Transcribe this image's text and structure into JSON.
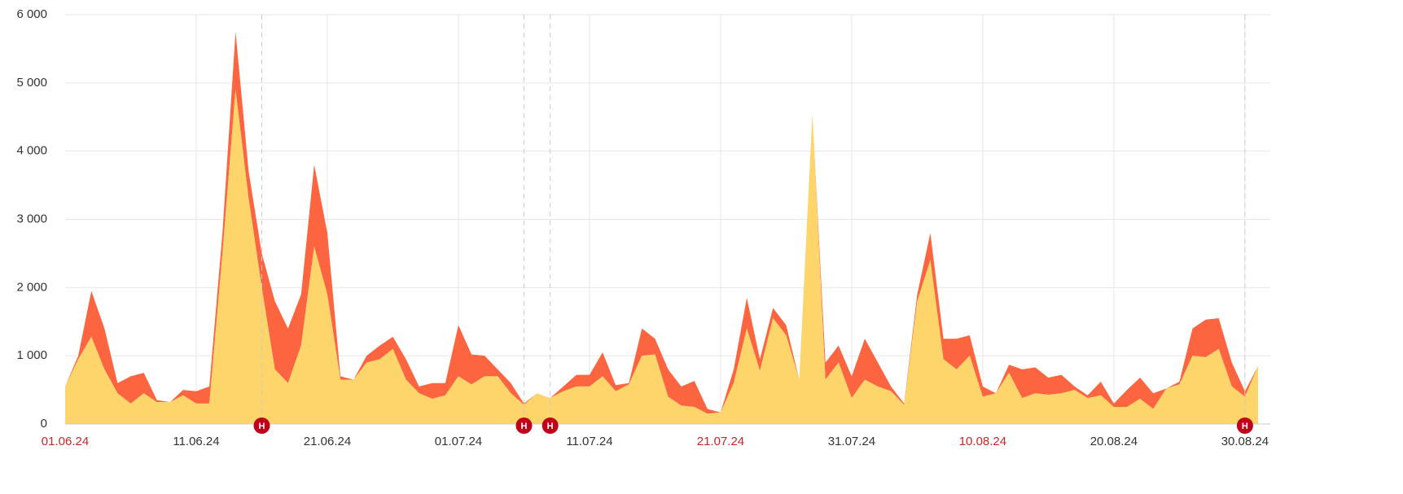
{
  "chart_data": {
    "type": "stacked_area",
    "categories": [
      "01.06.24",
      null,
      null,
      null,
      null,
      null,
      null,
      null,
      null,
      null,
      "11.06.24",
      null,
      null,
      null,
      null,
      null,
      null,
      null,
      null,
      null,
      "21.06.24",
      null,
      null,
      null,
      null,
      null,
      null,
      null,
      null,
      null,
      "01.07.24",
      null,
      null,
      null,
      null,
      null,
      null,
      null,
      null,
      null,
      "11.07.24",
      null,
      null,
      null,
      null,
      null,
      null,
      null,
      null,
      null,
      "21.07.24",
      null,
      null,
      null,
      null,
      null,
      null,
      null,
      null,
      null,
      "31.07.24",
      null,
      null,
      null,
      null,
      null,
      null,
      null,
      null,
      null,
      "10.08.24",
      null,
      null,
      null,
      null,
      null,
      null,
      null,
      null,
      null,
      "20.08.24",
      null,
      null,
      null,
      null,
      null,
      null,
      null,
      null,
      null,
      "30.08.24",
      null
    ],
    "series": [
      {
        "color": "#fdd56a",
        "values": [
          550,
          950,
          1280,
          800,
          450,
          300,
          450,
          320,
          320,
          420,
          300,
          300,
          2500,
          4900,
          3300,
          2000,
          800,
          600,
          1150,
          2600,
          1900,
          650,
          650,
          900,
          950,
          1100,
          650,
          450,
          370,
          420,
          700,
          580,
          700,
          700,
          450,
          280,
          450,
          380,
          480,
          550,
          550,
          700,
          480,
          580,
          1000,
          1020,
          400,
          270,
          250,
          150,
          170,
          600,
          1400,
          780,
          1550,
          1300,
          650,
          4550,
          650,
          900,
          380,
          650,
          550,
          480,
          280,
          1800,
          2400,
          950,
          800,
          1000,
          400,
          450,
          750,
          380,
          450,
          430,
          450,
          500,
          380,
          420,
          250,
          250,
          370,
          220,
          520,
          580,
          1000,
          980,
          1100,
          550,
          400,
          850
        ]
      },
      {
        "color": "#fd6440",
        "values": [
          0,
          50,
          670,
          600,
          150,
          400,
          300,
          30,
          0,
          80,
          180,
          250,
          300,
          850,
          400,
          500,
          1000,
          800,
          750,
          1200,
          900,
          50,
          0,
          100,
          200,
          180,
          300,
          100,
          230,
          180,
          750,
          440,
          300,
          100,
          150,
          20,
          0,
          0,
          70,
          170,
          170,
          350,
          90,
          20,
          400,
          230,
          400,
          280,
          380,
          70,
          0,
          200,
          450,
          170,
          150,
          150,
          0,
          0,
          250,
          250,
          320,
          600,
          350,
          70,
          20,
          100,
          400,
          300,
          450,
          300,
          150,
          0,
          120,
          420,
          380,
          250,
          270,
          50,
          40,
          200,
          50,
          250,
          310,
          230,
          0,
          40,
          400,
          550,
          450,
          350,
          80,
          0
        ]
      }
    ],
    "ylim": [
      0,
      6000
    ],
    "yticks": [
      0,
      {
        "value": 1000,
        "label": "1 000"
      },
      {
        "value": 2000,
        "label": "2 000"
      },
      {
        "value": 3000,
        "label": "3 000"
      },
      {
        "value": 4000,
        "label": "4 000"
      },
      {
        "value": 5000,
        "label": "5 000"
      },
      {
        "value": 6000,
        "label": "6 000"
      }
    ],
    "grid": true,
    "highlight_color": "#c62828",
    "highlighted_categories": [
      0,
      50,
      70
    ],
    "markers": {
      "label": "H",
      "color": "#c0001a",
      "positions": [
        15,
        35,
        37,
        90
      ]
    }
  }
}
